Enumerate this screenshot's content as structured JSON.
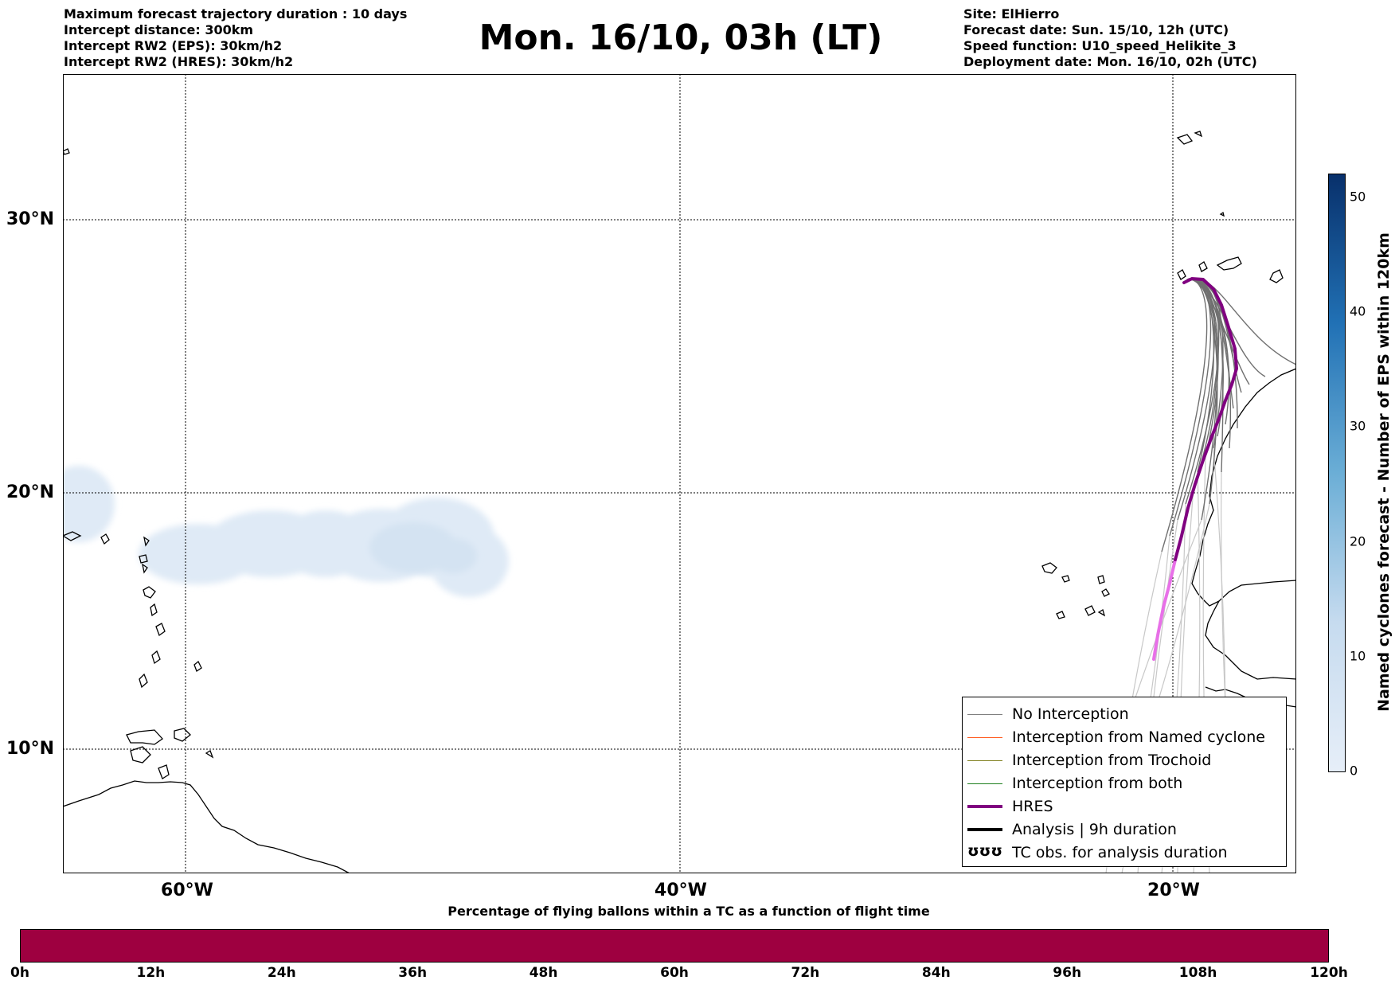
{
  "header": {
    "info_left": [
      "Maximum forecast trajectory duration : 10 days",
      "Intercept distance: 300km",
      "Intercept RW2 (EPS):  30km/h2",
      "Intercept RW2 (HRES): 30km/h2"
    ],
    "title": "Mon. 16/10, 03h (LT)",
    "info_right": [
      "Site: ElHierro",
      "Forecast date: Sun. 15/10, 12h (UTC)",
      "Speed function: U10_speed_Helikite_3",
      "Deployment date: Mon. 16/10, 02h (UTC)"
    ]
  },
  "map": {
    "lat_labels": [
      "30°N",
      "20°N",
      "10°N"
    ],
    "lon_labels": [
      "60°W",
      "40°W",
      "20°W"
    ],
    "site": "ElHierro",
    "colors": {
      "no_interception": "#808080",
      "named_cyclone": "#ff5a1e",
      "trochoid": "#808020",
      "both": "#1e801e",
      "hres": "#800080",
      "hres_late": "#e870e8",
      "analysis": "#000000",
      "cyclone_density": "#dce8f5"
    }
  },
  "legend": {
    "items": [
      {
        "label": "No Interception",
        "color": "#808080",
        "style": "thin"
      },
      {
        "label": "Interception from Named cyclone",
        "color": "#ff5a1e",
        "style": "thin"
      },
      {
        "label": "Interception from Trochoid",
        "color": "#808020",
        "style": "thin"
      },
      {
        "label": "Interception from both",
        "color": "#1e801e",
        "style": "thin"
      },
      {
        "label": "HRES",
        "color": "#800080",
        "style": "thick"
      },
      {
        "label": "Analysis | 9h duration",
        "color": "#000000",
        "style": "thick"
      },
      {
        "label": "TC obs. for analysis duration",
        "color": "#000000",
        "style": "symbol",
        "symbol": "ʊʊʊ"
      }
    ]
  },
  "colorbar_right": {
    "label": "Named cyclones forecast - Number of EPS within 120km",
    "ticks": [
      "50",
      "40",
      "30",
      "20",
      "10",
      "0"
    ],
    "min": 0,
    "max": 52,
    "colors": [
      "#e6eef8",
      "#08306b"
    ]
  },
  "colorbar_bottom": {
    "title": "Percentage of flying ballons within a TC as a function of flight time",
    "ticks": [
      "0h",
      "12h",
      "24h",
      "36h",
      "48h",
      "60h",
      "72h",
      "84h",
      "96h",
      "108h",
      "120h"
    ],
    "fill_color": "#9e0040"
  }
}
